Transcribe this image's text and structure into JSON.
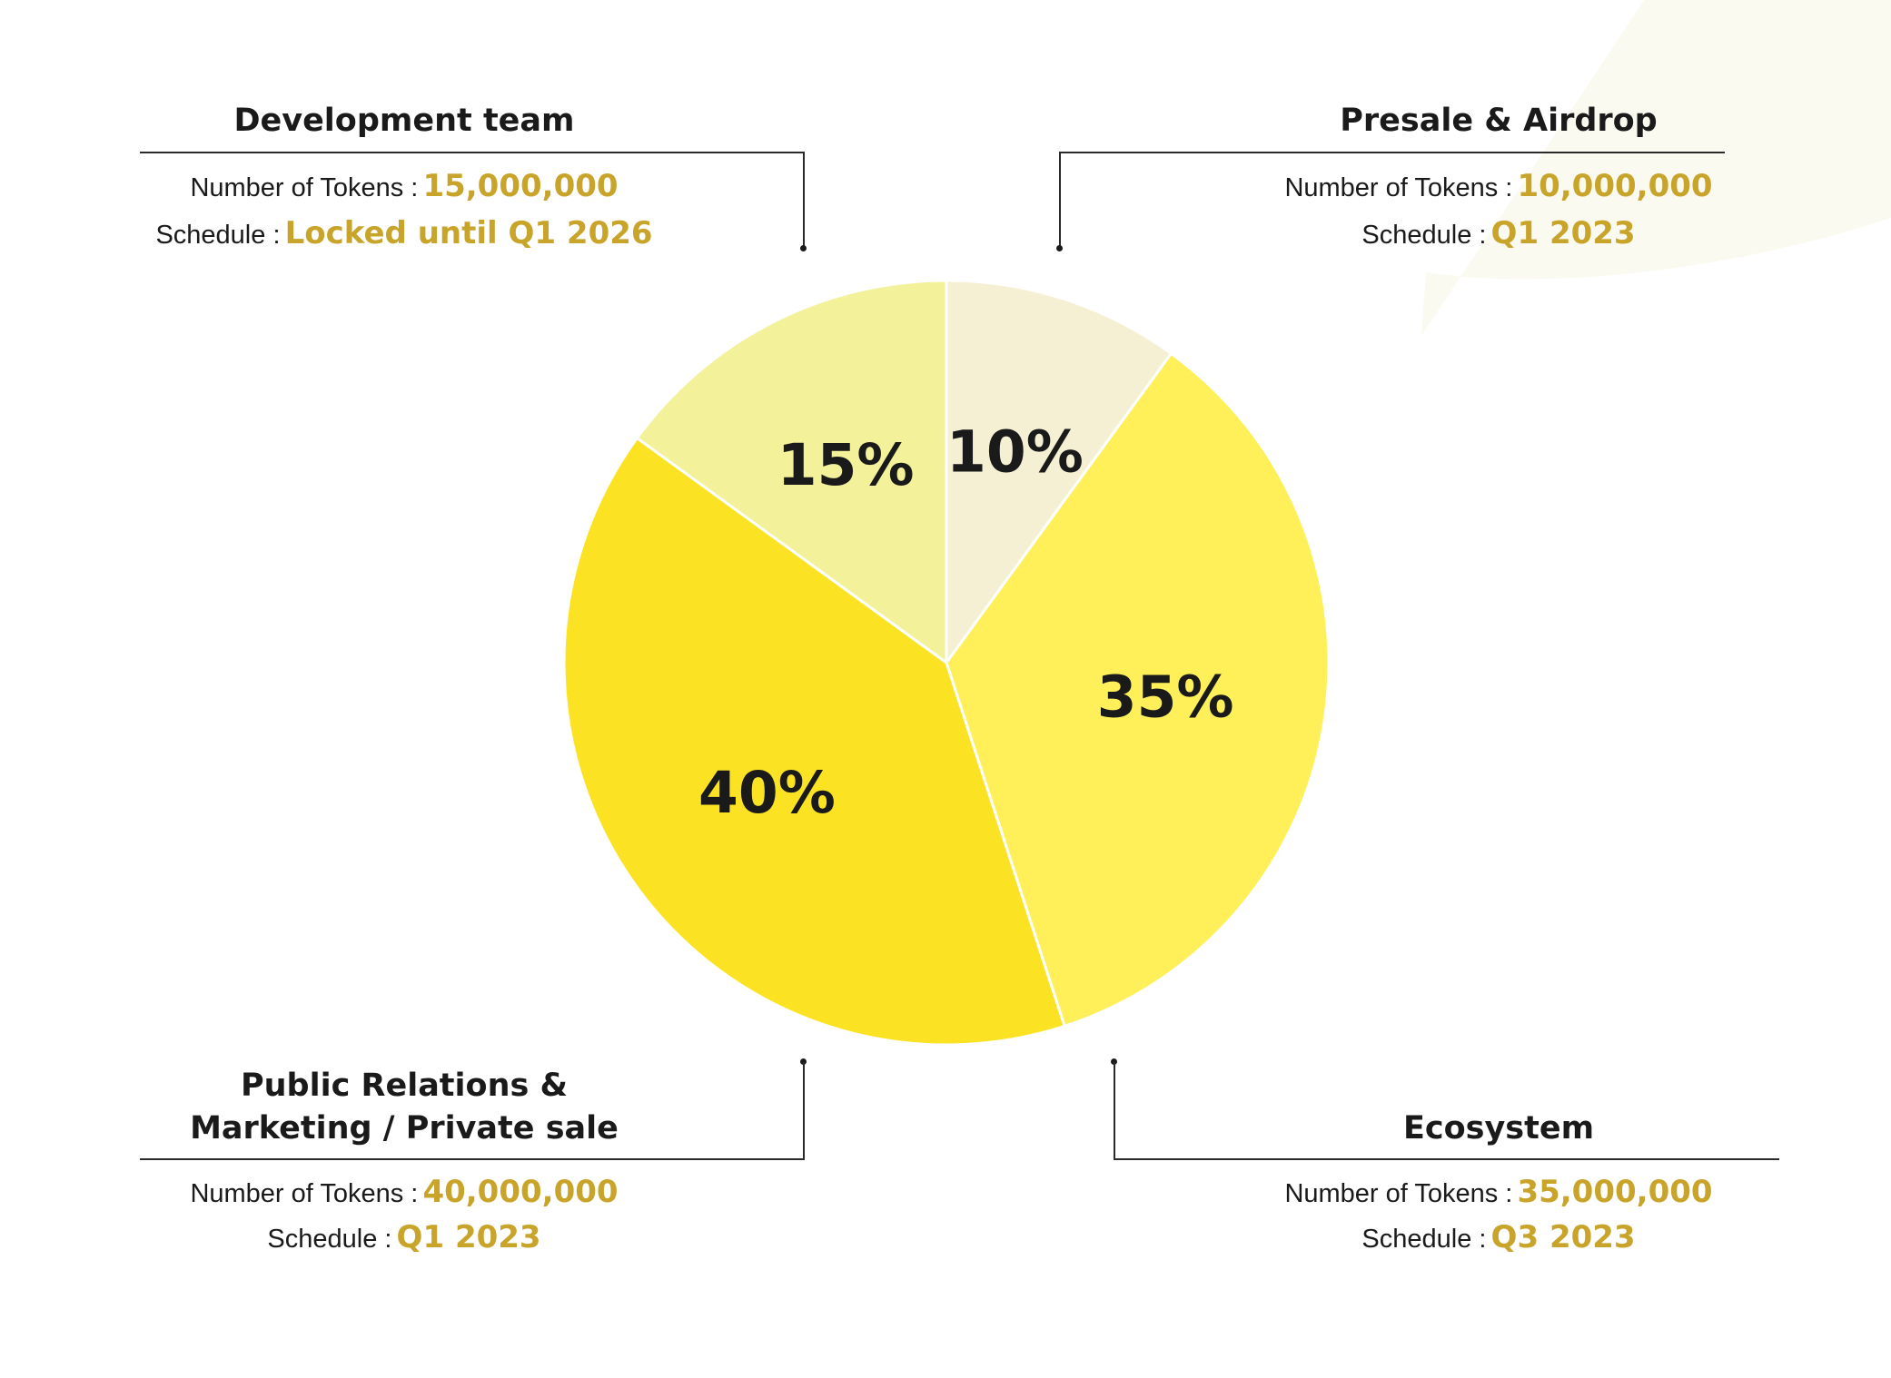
{
  "colors": {
    "accent_value": "#c8a42a",
    "slice_edge": "#ffffff"
  },
  "chart_data": {
    "type": "pie",
    "categories": [
      "Presale & Airdrop",
      "Ecosystem",
      "Public Relations & Marketing / Private sale",
      "Development team"
    ],
    "values": [
      10,
      35,
      40,
      15
    ],
    "value_labels": [
      "10%",
      "35%",
      "40%",
      "15%"
    ],
    "colors": [
      "#f5f0d4",
      "#fff05a",
      "#fbe324",
      "#f4f19b"
    ],
    "start": "12 o'clock, clockwise"
  },
  "callouts": {
    "development_team": {
      "title": "Development team",
      "tokens_label": "Number of Tokens :",
      "tokens_value": "15,000,000",
      "schedule_label": "Schedule :",
      "schedule_value": "Locked until Q1 2026"
    },
    "presale_airdrop": {
      "title": "Presale & Airdrop",
      "tokens_label": "Number of Tokens :",
      "tokens_value": "10,000,000",
      "schedule_label": "Schedule :",
      "schedule_value": "Q1 2023"
    },
    "public_relations": {
      "title_line1": "Public Relations &",
      "title_line2": "Marketing / Private sale",
      "tokens_label": "Number of Tokens :",
      "tokens_value": "40,000,000",
      "schedule_label": "Schedule :",
      "schedule_value": "Q1 2023"
    },
    "ecosystem": {
      "title": "Ecosystem",
      "tokens_label": "Number of Tokens :",
      "tokens_value": "35,000,000",
      "schedule_label": "Schedule :",
      "schedule_value": "Q3 2023"
    }
  }
}
